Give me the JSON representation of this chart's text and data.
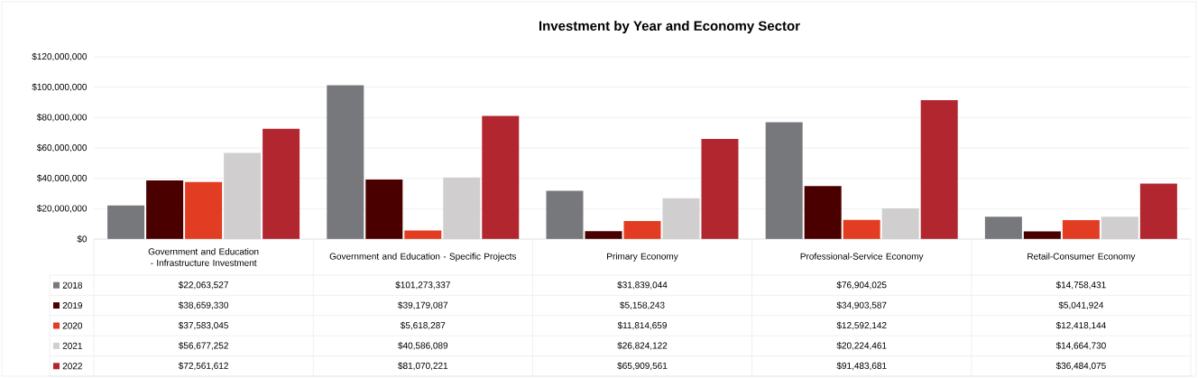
{
  "chart_data": {
    "type": "bar",
    "title": "Investment by Year and Economy Sector",
    "categories": [
      "Government and Education - Infrastructure Investment",
      "Government and Education - Specific Projects",
      "Primary Economy",
      "Professional-Service Economy",
      "Retail-Consumer Economy"
    ],
    "series": [
      {
        "name": "2018",
        "color": "#77787b",
        "values": [
          22063527,
          101273337,
          31839044,
          76904025,
          14758431
        ],
        "value_labels": [
          "$22,063,527",
          "$101,273,337",
          "$31,839,044",
          "$76,904,025",
          "$14,758,431"
        ]
      },
      {
        "name": "2019",
        "color": "#4b0000",
        "values": [
          38659330,
          39179087,
          5158243,
          34903587,
          5041924
        ],
        "value_labels": [
          "$38,659,330",
          "$39,179,087",
          "$5,158,243",
          "$34,903,587",
          "$5,041,924"
        ]
      },
      {
        "name": "2020",
        "color": "#e23c22",
        "values": [
          37583045,
          5618287,
          11814659,
          12592142,
          12418144
        ],
        "value_labels": [
          "$37,583,045",
          "$5,618,287",
          "$11,814,659",
          "$12,592,142",
          "$12,418,144"
        ]
      },
      {
        "name": "2021",
        "color": "#d0cecf",
        "values": [
          56677252,
          40586089,
          26824122,
          20224461,
          14664730
        ],
        "value_labels": [
          "$56,677,252",
          "$40,586,089",
          "$26,824,122",
          "$20,224,461",
          "$14,664,730"
        ]
      },
      {
        "name": "2022",
        "color": "#b2272f",
        "values": [
          72561612,
          81070221,
          65909561,
          91483681,
          36484075
        ],
        "value_labels": [
          "$72,561,612",
          "$81,070,221",
          "$65,909,561",
          "$91,483,681",
          "$36,484,075"
        ]
      }
    ],
    "ylim": [
      0,
      120000000
    ],
    "yticks": [
      {
        "value": 0,
        "label": "$0"
      },
      {
        "value": 20000000,
        "label": "$20,000,000"
      },
      {
        "value": 40000000,
        "label": "$40,000,000"
      },
      {
        "value": 60000000,
        "label": "$60,000,000"
      },
      {
        "value": 80000000,
        "label": "$80,000,000"
      },
      {
        "value": 100000000,
        "label": "$100,000,000"
      },
      {
        "value": 120000000,
        "label": "$120,000,000"
      }
    ],
    "grid": "y",
    "legend": "bottom"
  }
}
